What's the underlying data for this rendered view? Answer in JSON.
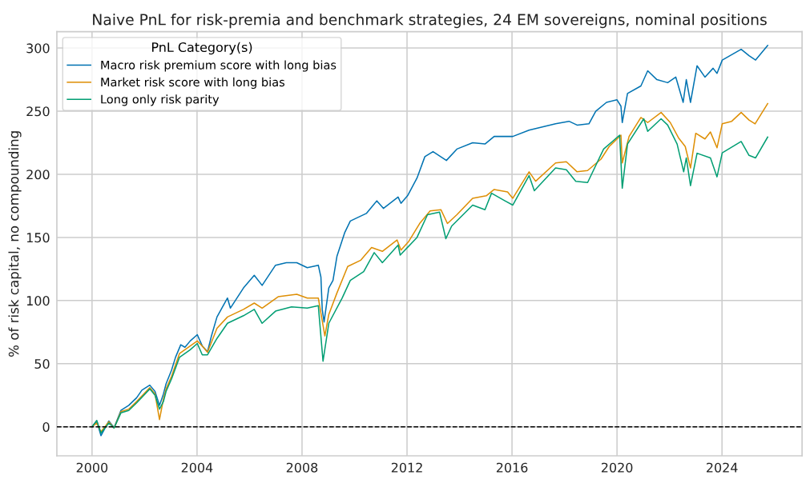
{
  "chart_data": {
    "type": "line",
    "title": "Naive PnL for risk-premia and benchmark strategies, 24 EM sovereigns, nominal positions",
    "ylabel": "% of risk capital, no compounding",
    "legend_title": "PnL Category(s)",
    "legend": "top left",
    "grid": true,
    "xlim": [
      1998.66,
      2027.05
    ],
    "xticks": [
      2000,
      2004,
      2008,
      2012,
      2016,
      2020,
      2024
    ],
    "ylim": [
      -23,
      313
    ],
    "yticks": [
      0,
      50,
      100,
      150,
      200,
      250,
      300
    ],
    "ref_lines": [
      {
        "axis": "y",
        "value": 0,
        "color": "#000000",
        "line_style": "dashed"
      }
    ],
    "series": [
      {
        "name": "Macro risk premium score with long bias",
        "color": "#0173b2",
        "x": [
          2000.0,
          2000.18,
          2000.34,
          2000.64,
          2000.84,
          2001.1,
          2001.4,
          2001.7,
          2001.9,
          2002.2,
          2002.4,
          2002.57,
          2002.72,
          2002.82,
          2003.03,
          2003.18,
          2003.38,
          2003.54,
          2003.74,
          2004.01,
          2004.2,
          2004.4,
          2004.55,
          2004.76,
          2005.16,
          2005.27,
          2005.77,
          2006.18,
          2006.48,
          2006.99,
          2007.4,
          2007.8,
          2008.2,
          2008.62,
          2008.72,
          2008.77,
          2008.84,
          2009.02,
          2009.18,
          2009.33,
          2009.63,
          2009.84,
          2010.45,
          2010.85,
          2011.1,
          2011.66,
          2011.77,
          2012.02,
          2012.38,
          2012.68,
          2012.99,
          2013.5,
          2013.9,
          2014.5,
          2014.97,
          2015.32,
          2016.03,
          2016.65,
          2017.66,
          2018.17,
          2018.48,
          2018.93,
          2019.19,
          2019.6,
          2020.0,
          2020.15,
          2020.2,
          2020.4,
          2020.91,
          2021.17,
          2021.52,
          2021.93,
          2022.24,
          2022.52,
          2022.64,
          2022.8,
          2023.05,
          2023.35,
          2023.66,
          2023.81,
          2024.01,
          2024.73,
          2025.03,
          2025.28,
          2025.74
        ],
        "values": [
          0,
          4.6,
          -7,
          4.6,
          -0.6,
          13,
          17,
          23,
          29,
          33,
          28,
          17,
          26,
          34,
          45,
          55,
          65,
          63,
          68,
          73,
          64,
          59.5,
          72,
          87,
          102,
          94,
          110,
          120,
          112,
          128,
          130,
          130,
          126,
          128,
          118.6,
          93,
          83,
          110,
          116,
          135,
          154,
          163,
          169,
          179,
          173,
          182,
          177,
          183,
          197,
          214,
          218,
          211,
          220,
          225,
          224,
          230,
          230,
          235,
          240,
          242,
          239,
          240,
          250,
          257,
          259,
          254,
          241,
          264,
          270,
          282,
          275,
          272.6,
          277,
          257,
          275,
          257,
          286,
          277,
          284,
          280,
          290.5,
          299,
          294,
          290.5,
          302
        ]
      },
      {
        "name": "Market risk score with long bias",
        "color": "#de8f05",
        "x": [
          2000.0,
          2000.18,
          2000.34,
          2000.64,
          2000.84,
          2001.1,
          2001.4,
          2001.7,
          2002.2,
          2002.4,
          2002.57,
          2002.72,
          2002.82,
          2003.03,
          2003.33,
          2003.74,
          2004.01,
          2004.2,
          2004.4,
          2004.76,
          2005.16,
          2005.77,
          2006.18,
          2006.48,
          2007.09,
          2007.8,
          2008.2,
          2008.62,
          2008.87,
          2009.02,
          2009.33,
          2009.74,
          2010.24,
          2010.65,
          2011.06,
          2011.62,
          2011.77,
          2012.07,
          2012.48,
          2012.88,
          2013.29,
          2013.54,
          2013.9,
          2014.5,
          2015.02,
          2015.32,
          2015.83,
          2016.03,
          2016.65,
          2016.9,
          2017.66,
          2018.07,
          2018.48,
          2018.88,
          2019.39,
          2019.7,
          2020.15,
          2020.2,
          2020.46,
          2020.91,
          2021.17,
          2021.68,
          2022.03,
          2022.34,
          2022.6,
          2022.8,
          2023.0,
          2023.35,
          2023.56,
          2023.81,
          2024.01,
          2024.37,
          2024.73,
          2025.03,
          2025.26,
          2025.74
        ],
        "values": [
          0,
          3,
          -4,
          4,
          -1,
          12,
          14,
          20,
          31,
          26,
          5.7,
          22,
          30,
          40,
          58,
          64,
          68,
          64,
          59,
          78,
          87,
          93,
          98,
          94,
          103,
          105,
          102,
          102,
          72,
          89,
          106,
          127,
          132,
          142,
          139,
          148,
          140,
          147,
          161,
          171,
          172,
          161,
          168,
          181,
          183,
          188,
          186,
          181,
          202,
          194.5,
          209,
          210,
          202,
          203,
          212,
          222,
          231,
          209,
          230,
          245,
          241,
          249,
          241,
          229,
          222,
          205,
          232.5,
          228,
          233.5,
          221,
          240,
          242,
          249,
          243,
          240,
          256
        ]
      },
      {
        "name": "Long only risk parity",
        "color": "#029e73",
        "x": [
          2000.0,
          2000.18,
          2000.34,
          2000.64,
          2000.84,
          2001.1,
          2001.4,
          2001.7,
          2002.2,
          2002.4,
          2002.57,
          2002.72,
          2002.82,
          2003.03,
          2003.33,
          2003.74,
          2004.01,
          2004.2,
          2004.4,
          2004.76,
          2005.16,
          2005.77,
          2006.18,
          2006.48,
          2006.99,
          2007.6,
          2008.2,
          2008.62,
          2008.8,
          2009.02,
          2009.53,
          2009.84,
          2010.35,
          2010.75,
          2011.06,
          2011.66,
          2011.74,
          2012.38,
          2012.78,
          2013.24,
          2013.48,
          2013.7,
          2014.5,
          2014.97,
          2015.22,
          2015.73,
          2016.03,
          2016.65,
          2016.85,
          2017.66,
          2018.07,
          2018.43,
          2018.88,
          2019.49,
          2020.1,
          2020.2,
          2020.4,
          2021.02,
          2021.17,
          2021.68,
          2021.93,
          2022.29,
          2022.54,
          2022.64,
          2022.8,
          2023.05,
          2023.56,
          2023.81,
          2024.01,
          2024.73,
          2025.03,
          2025.28,
          2025.74
        ],
        "values": [
          0,
          5,
          -5,
          3,
          -1,
          11,
          13,
          19,
          30,
          25,
          14,
          20,
          28,
          38,
          55,
          61,
          66,
          57,
          57,
          70,
          82,
          88,
          93,
          82,
          91.6,
          95,
          94,
          96,
          52,
          82,
          102,
          116,
          123,
          138,
          130,
          144,
          136,
          150,
          168,
          170,
          149,
          159,
          175.6,
          172,
          185,
          179,
          175.6,
          199,
          187,
          205,
          203.6,
          194.5,
          193.5,
          220,
          231,
          189,
          224,
          244,
          234,
          244,
          239,
          224,
          202,
          213,
          191,
          216.7,
          213,
          198,
          217,
          226,
          215,
          213,
          229.5
        ]
      }
    ]
  }
}
